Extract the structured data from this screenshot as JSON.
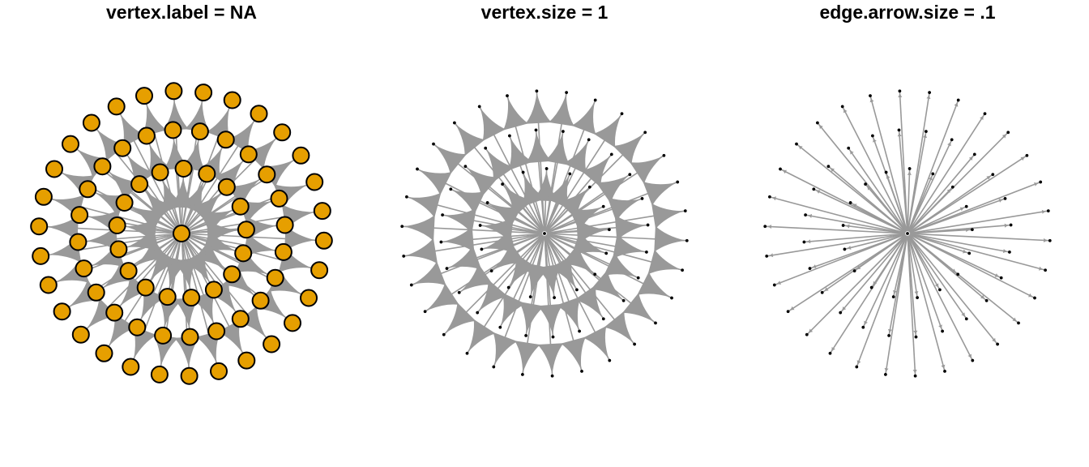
{
  "colors": {
    "edge": "#999999",
    "vertex_fill": "#E69F00",
    "vertex_stroke": "#000000",
    "background": "#FFFFFF"
  },
  "network": {
    "type": "star",
    "direction": "outward",
    "leaf_count": 71,
    "rings": 3
  },
  "panels": [
    {
      "title": "vertex.label = NA",
      "vertex_style": "large-filled",
      "arrow_style": "large"
    },
    {
      "title": "vertex.size = 1",
      "vertex_style": "dot",
      "arrow_style": "large"
    },
    {
      "title": "edge.arrow.size = .1",
      "vertex_style": "dot",
      "arrow_style": "small"
    }
  ]
}
